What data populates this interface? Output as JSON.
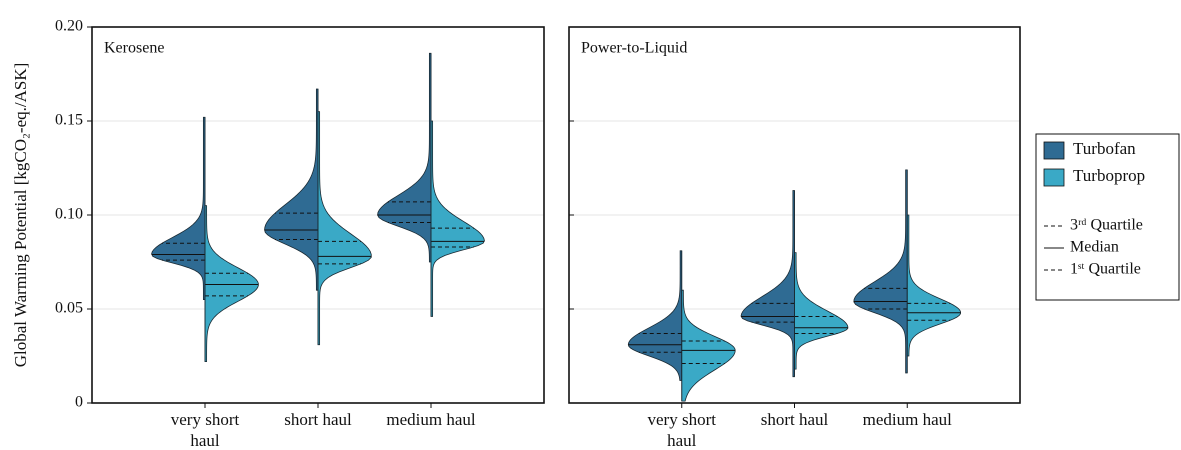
{
  "chart_data": [
    {
      "type": "violin",
      "title": "Kerosene",
      "ylabel": "Global Warming Potential [kgCO₂-eq./ASK]",
      "categories": [
        "very short haul",
        "short haul",
        "medium haul"
      ],
      "ylim": [
        0,
        0.2
      ],
      "yticks": [
        0,
        0.05,
        {
          "value": 0.1,
          "label": "0.10"
        },
        0.15,
        {
          "value": 0.2,
          "label": "0.20"
        }
      ],
      "grid": true,
      "quartile_labels": [
        "3ʳᵈ Quartile",
        "Median",
        "1ˢᵗ Quartile"
      ],
      "series": [
        {
          "name": "Turbofan",
          "color": "#2f6b93",
          "min": [
            0.055,
            0.06,
            0.075
          ],
          "q1": [
            0.076,
            0.087,
            0.096
          ],
          "median": [
            0.079,
            0.092,
            0.1
          ],
          "q3": [
            0.085,
            0.101,
            0.107
          ],
          "max": [
            0.152,
            0.167,
            0.186
          ]
        },
        {
          "name": "Turboprop",
          "color": "#3aa9c6",
          "min": [
            0.022,
            0.031,
            0.046
          ],
          "q1": [
            0.057,
            0.074,
            0.083
          ],
          "median": [
            0.063,
            0.078,
            0.086
          ],
          "q3": [
            0.069,
            0.086,
            0.093
          ],
          "max": [
            0.105,
            0.155,
            0.15
          ]
        }
      ]
    },
    {
      "type": "violin",
      "title": "Power-to-Liquid",
      "categories": [
        "very short haul",
        "short haul",
        "medium haul"
      ],
      "ylim": [
        0,
        0.2
      ],
      "grid": true,
      "series": [
        {
          "color": "#2f6b93",
          "min": [
            0.012,
            0.014,
            0.016
          ],
          "q1": [
            0.027,
            0.043,
            0.05
          ],
          "median": [
            0.031,
            0.046,
            0.054
          ],
          "q3": [
            0.037,
            0.053,
            0.061
          ],
          "max": [
            0.081,
            0.113,
            0.124
          ]
        },
        {
          "color": "#3aa9c6",
          "min": [
            0.001,
            0.018,
            0.025
          ],
          "q1": [
            0.021,
            0.037,
            0.044
          ],
          "median": [
            0.028,
            0.04,
            0.048
          ],
          "q3": [
            0.033,
            0.046,
            0.053
          ],
          "max": [
            0.06,
            0.08,
            0.1
          ]
        }
      ]
    }
  ]
}
